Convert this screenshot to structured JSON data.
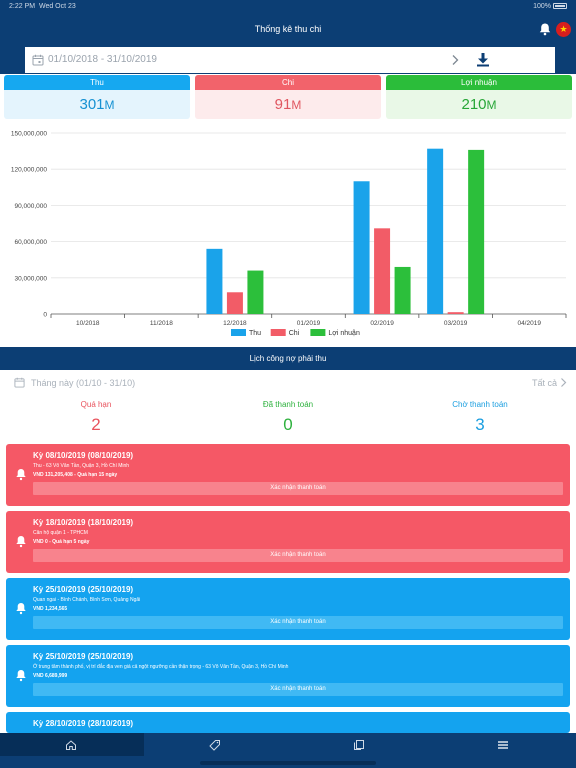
{
  "status_bar": {
    "time": "2:22 PM",
    "date": "Wed Oct 23",
    "battery": "100%"
  },
  "header": {
    "title": "Thống kê thu chi",
    "bell_icon": "bell-icon",
    "flag_icon": "vietnam-flag-icon"
  },
  "date_filter": {
    "range": "01/10/2018 - 31/10/2019",
    "next_icon": "chevron-right-icon",
    "download_icon": "download-icon"
  },
  "kpis": [
    {
      "label": "Thu",
      "value": "301",
      "unit": "M",
      "color": "#16a8f0"
    },
    {
      "label": "Chi",
      "value": "91",
      "unit": "M",
      "color": "#f2636b"
    },
    {
      "label": "Lợi nhuận",
      "value": "210",
      "unit": "M",
      "color": "#2bbd3a"
    }
  ],
  "chart_data": {
    "type": "bar",
    "categories": [
      "10/2018",
      "11/2018",
      "12/2018",
      "01/2019",
      "02/2019",
      "03/2019",
      "04/2019"
    ],
    "series": [
      {
        "name": "Thu",
        "color": "#1aa3ea",
        "values": [
          0,
          0,
          54000000,
          0,
          110000000,
          137000000,
          0
        ]
      },
      {
        "name": "Chi",
        "color": "#f25c67",
        "values": [
          0,
          0,
          18000000,
          0,
          71000000,
          1500000,
          0
        ]
      },
      {
        "name": "Lợi nhuận",
        "color": "#2cbf3b",
        "values": [
          0,
          0,
          36000000,
          0,
          39000000,
          136000000,
          0
        ]
      }
    ],
    "y_ticks": [
      "0",
      "30,000,000",
      "60,000,000",
      "90,000,000",
      "120,000,000",
      "150,000,000"
    ],
    "ylim": [
      0,
      150000000
    ],
    "grid": true,
    "legend_position": "bottom-center"
  },
  "debt_section": {
    "title": "Lịch công nợ phải thu",
    "period": "Tháng này (01/10 - 31/10)",
    "filter": "Tất cả",
    "summary": [
      {
        "label": "Quá hạn",
        "count": "2"
      },
      {
        "label": "Đã thanh toán",
        "count": "0"
      },
      {
        "label": "Chờ thanh toán",
        "count": "3"
      }
    ]
  },
  "cards": [
    {
      "title": "Kỳ 08/10/2019 (08/10/2019)",
      "address": "Thu - 63 Võ Văn Tần, Quận 3, Hồ Chí Minh",
      "amount": "VND 131,205,408 - Quá hạn 15 ngày",
      "button": "Xác nhận thanh toán",
      "status": "overdue"
    },
    {
      "title": "Kỳ 18/10/2019 (18/10/2019)",
      "address": "Căn hộ quận 1 - TPHCM",
      "amount": "VND 0 - Quá hạn 5 ngày",
      "button": "Xác nhận thanh toán",
      "status": "overdue"
    },
    {
      "title": "Kỳ 25/10/2019 (25/10/2019)",
      "address": "Quan ngai - Bình Chánh, Bình Sơn, Quảng Ngãi",
      "amount": "VND 1,234,565",
      "button": "Xác nhận thanh toán",
      "status": "pending"
    },
    {
      "title": "Kỳ 25/10/2019 (25/10/2019)",
      "address": "Ở trung tâm thành phố, vị trí đắc địa ven giá cả ngột ngưỡng cần thận trọng - 63 Võ Văn Tần, Quận 3, Hồ Chí Minh",
      "amount": "VND 6,689,999",
      "button": "Xác nhận thanh toán",
      "status": "pending"
    },
    {
      "title": "Kỳ 28/10/2019 (28/10/2019)",
      "address": "",
      "amount": "",
      "button": "",
      "status": "pending"
    }
  ],
  "tabbar": [
    {
      "icon": "home-icon",
      "active": true
    },
    {
      "icon": "tag-icon",
      "active": false
    },
    {
      "icon": "copy-icon",
      "active": false
    },
    {
      "icon": "menu-icon",
      "active": false
    }
  ]
}
